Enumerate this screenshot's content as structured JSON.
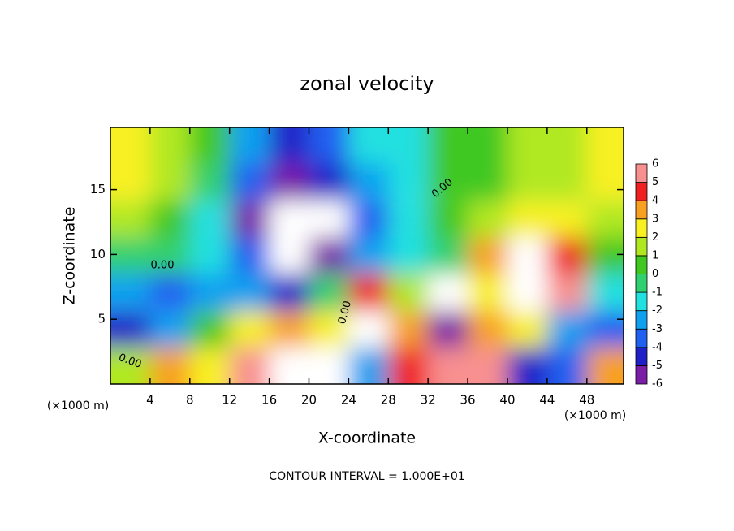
{
  "chart_data": {
    "type": "contour",
    "title": "zonal velocity",
    "x_label": "X-coordinate",
    "y_label": "Z-coordinate",
    "x_unit": "(×1000 m)",
    "y_unit": "(×1000 m)",
    "footer": "CONTOUR INTERVAL = 1.000E+01",
    "xlim": [
      0,
      51.7
    ],
    "ylim": [
      0,
      19.8
    ],
    "xticks": [
      4,
      8,
      12,
      16,
      20,
      24,
      28,
      32,
      36,
      40,
      44,
      48
    ],
    "yticks": [
      5,
      10,
      15
    ],
    "x": [
      2,
      6,
      10,
      14,
      18,
      22,
      26,
      30,
      34,
      38,
      42,
      46,
      50
    ],
    "z": [
      18.4,
      15.6,
      12.7,
      9.9,
      7.1,
      4.2,
      1.4
    ],
    "field": [
      [
        2.5,
        2,
        0.5,
        -2,
        -4,
        -3,
        -1.5,
        -1,
        0.5,
        1,
        1.5,
        2,
        2.5
      ],
      [
        2.5,
        1.5,
        0,
        -3,
        -5,
        -4,
        -2,
        -1,
        0.5,
        1,
        1.5,
        2,
        2.5
      ],
      [
        2,
        1,
        -1,
        -5,
        -8,
        -8,
        -3,
        -1,
        0.5,
        2,
        3,
        2.5,
        2
      ],
      [
        0,
        0,
        -1,
        -3,
        -8,
        -5,
        -2,
        -1,
        0,
        4,
        8,
        5,
        1
      ],
      [
        -2,
        -3,
        -2,
        -2,
        -4,
        0,
        5,
        2,
        -8,
        3,
        8,
        6,
        -1
      ],
      [
        -4,
        -2,
        1,
        3,
        4,
        3,
        8,
        4,
        -5,
        4,
        3,
        -2,
        -3
      ],
      [
        2,
        4,
        3,
        6,
        8,
        8,
        -2,
        5,
        6,
        6,
        -4,
        -3,
        4
      ]
    ],
    "contour_labels": [
      "0.00",
      "0.00",
      "0.00",
      "0.00"
    ],
    "colorbar": {
      "levels": [
        -6,
        -5,
        -4,
        -3,
        -2,
        -1,
        0,
        1,
        2,
        3,
        4,
        5,
        6
      ],
      "colors": [
        "#7a1ea8",
        "#2020c8",
        "#2060f0",
        "#10a0f0",
        "#20e0e0",
        "#30d070",
        "#40c820",
        "#b0e820",
        "#f8f020",
        "#f8a020",
        "#f02020",
        "#f89090"
      ]
    }
  }
}
